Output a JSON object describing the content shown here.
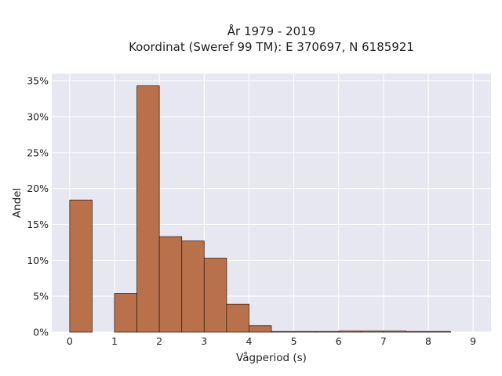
{
  "colors": {
    "plot_background": "#e7e7f1",
    "grid": "#ffffff",
    "bar_fill": "#b9714b",
    "bar_edge": "#3a2418",
    "text": "#222222"
  },
  "chart_data": {
    "type": "bar",
    "title_lines": [
      "År 1979 - 2019",
      "Koordinat (Sweref 99 TM): E 370697, N 6185921"
    ],
    "xlabel": "Vågperiod (s)",
    "ylabel": "Andel",
    "xlim": [
      -0.4,
      9.4
    ],
    "ylim": [
      0,
      0.36
    ],
    "xticks": [
      0,
      1,
      2,
      3,
      4,
      5,
      6,
      7,
      8,
      9
    ],
    "xtick_labels": [
      "0",
      "1",
      "2",
      "3",
      "4",
      "5",
      "6",
      "7",
      "8",
      "9"
    ],
    "yticks": [
      0,
      0.05,
      0.1,
      0.15,
      0.2,
      0.25,
      0.3,
      0.35
    ],
    "ytick_labels": [
      "0%",
      "5%",
      "10%",
      "15%",
      "20%",
      "25%",
      "30%",
      "35%"
    ],
    "grid": true,
    "bin_width": 0.5,
    "bins": [
      {
        "x0": 0.0,
        "value": 0.184
      },
      {
        "x0": 0.5,
        "value": 0.0
      },
      {
        "x0": 1.0,
        "value": 0.054
      },
      {
        "x0": 1.5,
        "value": 0.343
      },
      {
        "x0": 2.0,
        "value": 0.133
      },
      {
        "x0": 2.5,
        "value": 0.127
      },
      {
        "x0": 3.0,
        "value": 0.103
      },
      {
        "x0": 3.5,
        "value": 0.039
      },
      {
        "x0": 4.0,
        "value": 0.009
      },
      {
        "x0": 4.5,
        "value": 0.0005
      },
      {
        "x0": 5.0,
        "value": 0.0005
      },
      {
        "x0": 5.5,
        "value": 0.0002
      },
      {
        "x0": 6.0,
        "value": 0.0015
      },
      {
        "x0": 6.5,
        "value": 0.0015
      },
      {
        "x0": 7.0,
        "value": 0.0015
      },
      {
        "x0": 7.5,
        "value": 0.0008
      },
      {
        "x0": 8.0,
        "value": 0.0008
      }
    ]
  }
}
